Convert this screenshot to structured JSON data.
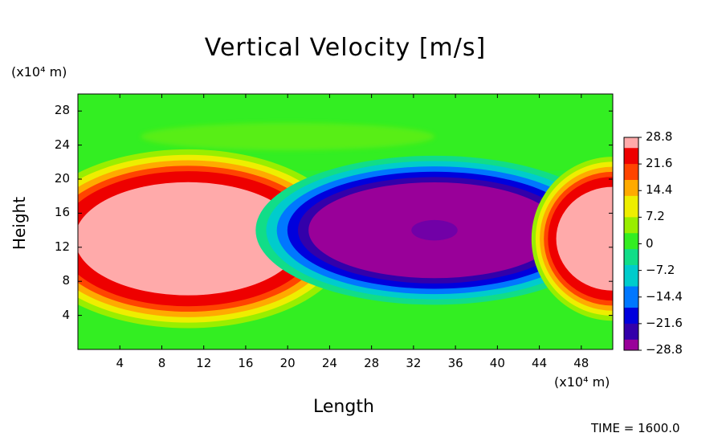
{
  "chart_data": {
    "type": "heatmap",
    "title": "Vertical Velocity [m/s]",
    "xlabel": "Length",
    "ylabel": "Height",
    "x_unit": "(x10⁴ m)",
    "y_unit": "(x10⁴ m)",
    "xlim": [
      0,
      51
    ],
    "ylim": [
      0,
      30
    ],
    "x_ticks": [
      4,
      8,
      12,
      16,
      20,
      24,
      28,
      32,
      36,
      40,
      44,
      48
    ],
    "y_ticks": [
      4,
      8,
      12,
      16,
      20,
      24,
      28
    ],
    "colorbar": {
      "min": -28.8,
      "max": 28.8,
      "tick_labels": [
        "28.8",
        "21.6",
        "14.4",
        "7.2",
        "0",
        "−7.2",
        "−14.4",
        "−21.6",
        "−28.8"
      ],
      "tick_values": [
        28.8,
        21.6,
        14.4,
        7.2,
        0,
        -7.2,
        -14.4,
        -21.6,
        -28.8
      ]
    },
    "features": [
      {
        "name": "updraft",
        "center": [
          10.5,
          13
        ],
        "radii": [
          10,
          6
        ],
        "value": 28.8
      },
      {
        "name": "downdraft",
        "center": [
          34,
          14
        ],
        "radii": [
          11,
          5
        ],
        "value": -28.8
      },
      {
        "name": "updraft",
        "center": [
          51,
          13
        ],
        "radii": [
          5,
          5.5
        ],
        "value": 28.8
      }
    ],
    "annotation": "TIME = 1600.0"
  },
  "colors": {
    "background_field": "#33ee22",
    "max": "#ffaaaa",
    "min": "#990099"
  }
}
